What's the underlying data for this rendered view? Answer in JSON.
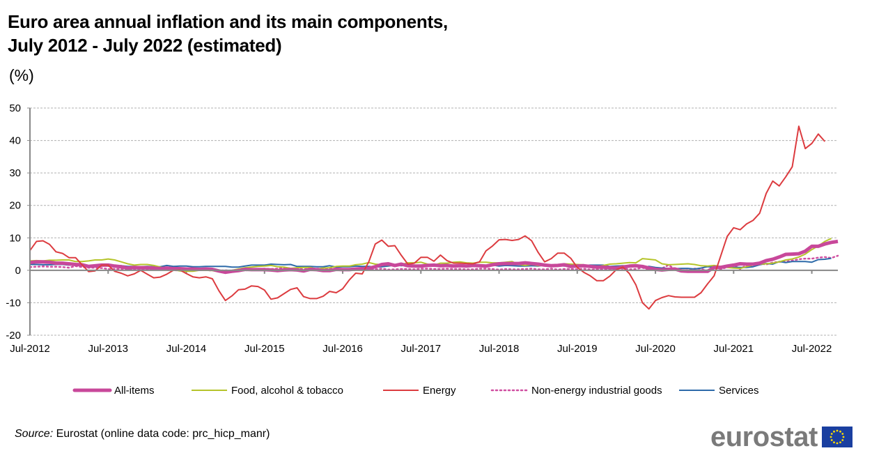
{
  "title_line1": "Euro area annual inflation and its main components,",
  "title_line2": "July 2012 - July 2022 (estimated)",
  "unit": "(%)",
  "source_label": "Source:",
  "source_text": " Eurostat (online data code: prc_hicp_manr)",
  "logo_text": "eurostat",
  "chart_data": {
    "type": "line",
    "title": "Euro area annual inflation and its main components, July 2012 - July 2022 (estimated)",
    "xlabel": "",
    "ylabel": "(%)",
    "ylim": [
      -20,
      50
    ],
    "yticks": [
      -20,
      -10,
      0,
      10,
      20,
      30,
      40,
      50
    ],
    "ytick_labels": [
      "-20",
      "-10",
      "0",
      "10",
      "20",
      "30",
      "40",
      "50"
    ],
    "xtick_labels": [
      "Jul-2012",
      "Jul-2013",
      "Jul-2014",
      "Jul-2015",
      "Jul-2016",
      "Jul-2017",
      "Jul-2018",
      "Jul-2019",
      "Jul-2020",
      "Jul-2021",
      "Jul-2022"
    ],
    "x_start": "Jul-2012",
    "x_end": "Jul-2022",
    "frequency": "monthly",
    "grid": "horizontal-dashed",
    "legend_position": "bottom",
    "series": [
      {
        "name": "All-items",
        "color": "#c8489a",
        "style": "thick",
        "values": [
          2.4,
          2.6,
          2.6,
          2.5,
          2.2,
          2.2,
          2.0,
          1.8,
          1.7,
          1.2,
          1.4,
          1.6,
          1.6,
          1.3,
          1.1,
          0.7,
          0.9,
          0.8,
          0.8,
          0.7,
          0.5,
          0.7,
          0.5,
          0.5,
          0.4,
          0.4,
          0.3,
          0.4,
          0.3,
          -0.2,
          -0.6,
          -0.3,
          -0.1,
          0.3,
          0.2,
          0.2,
          0.2,
          0.1,
          -0.1,
          0.1,
          0.2,
          0.1,
          -0.2,
          0.3,
          0.2,
          -0.1,
          -0.1,
          0.3,
          0.2,
          0.2,
          0.4,
          0.5,
          0.6,
          1.1,
          1.8,
          2.0,
          1.5,
          1.9,
          1.4,
          1.3,
          1.3,
          1.5,
          1.6,
          1.4,
          1.5,
          1.3,
          1.4,
          1.3,
          1.5,
          1.4,
          1.3,
          1.7,
          2.0,
          2.1,
          2.1,
          2.1,
          2.3,
          2.1,
          1.9,
          1.6,
          1.4,
          1.5,
          1.7,
          1.2,
          1.3,
          1.4,
          1.2,
          1.0,
          1.0,
          0.8,
          0.7,
          1.0,
          1.3,
          1.4,
          1.2,
          0.7,
          0.3,
          0.1,
          0.3,
          0.4,
          -0.2,
          -0.3,
          -0.3,
          -0.3,
          -0.3,
          0.9,
          0.9,
          1.3,
          1.6,
          2.0,
          1.9,
          1.9,
          2.2,
          3.0,
          3.4,
          4.1,
          4.9,
          5.0,
          5.1,
          5.9,
          7.4,
          7.4,
          8.1,
          8.6,
          8.9
        ]
      },
      {
        "name": "Food, alcohol & tobacco",
        "color": "#b5c42a",
        "style": "thin",
        "values": [
          2.9,
          3.0,
          2.9,
          3.1,
          3.1,
          3.2,
          3.2,
          2.7,
          2.7,
          2.9,
          3.2,
          3.2,
          3.5,
          3.2,
          2.6,
          2.0,
          1.6,
          1.8,
          1.8,
          1.5,
          1.0,
          0.7,
          0.2,
          -0.2,
          -0.3,
          -0.3,
          0.0,
          0.0,
          -0.1,
          -0.5,
          -0.1,
          0.0,
          0.4,
          0.8,
          1.0,
          1.2,
          1.3,
          1.5,
          1.1,
          1.0,
          0.6,
          0.8,
          0.9,
          0.9,
          0.4,
          0.7,
          0.8,
          1.2,
          1.3,
          1.3,
          1.7,
          1.9,
          2.4,
          1.9,
          1.7,
          1.6,
          1.6,
          1.8,
          2.3,
          2.3,
          2.5,
          1.9,
          1.6,
          2.2,
          2.2,
          2.5,
          2.6,
          2.3,
          2.2,
          2.5,
          2.5,
          2.3,
          2.3,
          2.5,
          2.7,
          1.8,
          1.5,
          1.8,
          1.4,
          1.5,
          1.6,
          1.6,
          2.0,
          1.9,
          1.8,
          1.7,
          1.2,
          1.1,
          1.5,
          1.9,
          2.0,
          2.2,
          2.4,
          2.3,
          3.6,
          3.4,
          3.2,
          2.0,
          1.7,
          1.8,
          1.9,
          2.0,
          1.8,
          1.4,
          1.3,
          1.5,
          1.2,
          0.9,
          0.7,
          0.6,
          1.1,
          1.6,
          1.9,
          2.0,
          2.2,
          2.6,
          3.2,
          3.5,
          4.1,
          5.0,
          6.4,
          7.5,
          8.9,
          9.8
        ]
      },
      {
        "name": "Energy",
        "color": "#dc3b3f",
        "style": "thin",
        "values": [
          6.1,
          8.9,
          9.1,
          8.0,
          5.7,
          5.2,
          3.9,
          3.9,
          1.7,
          -0.4,
          -0.2,
          1.6,
          1.6,
          -0.3,
          -0.9,
          -1.7,
          -1.1,
          0.0,
          -1.2,
          -2.3,
          -2.1,
          -1.2,
          0.0,
          0.1,
          -1.0,
          -2.0,
          -2.3,
          -2.0,
          -2.6,
          -6.3,
          -9.3,
          -7.9,
          -6.0,
          -5.8,
          -4.8,
          -5.0,
          -6.1,
          -8.9,
          -8.5,
          -7.2,
          -5.9,
          -5.4,
          -8.1,
          -8.7,
          -8.7,
          -8.0,
          -6.5,
          -6.9,
          -5.7,
          -3.0,
          -0.9,
          -1.1,
          2.6,
          8.1,
          9.3,
          7.4,
          7.6,
          4.6,
          1.9,
          2.2,
          4.0,
          4.0,
          2.8,
          4.7,
          3.0,
          2.2,
          2.2,
          2.1,
          2.0,
          2.6,
          6.0,
          7.5,
          9.4,
          9.5,
          9.2,
          9.5,
          10.6,
          9.1,
          5.5,
          2.6,
          3.6,
          5.3,
          5.3,
          3.7,
          0.9,
          -0.6,
          -1.7,
          -3.2,
          -3.2,
          -1.8,
          0.2,
          1.0,
          -1.0,
          -4.5,
          -10.0,
          -11.9,
          -9.3,
          -8.4,
          -7.8,
          -8.2,
          -8.3,
          -8.3,
          -8.3,
          -6.9,
          -4.2,
          -1.7,
          4.3,
          10.4,
          13.1,
          12.5,
          14.3,
          15.4,
          17.6,
          23.7,
          27.5,
          26.0,
          28.8,
          31.9,
          44.4,
          37.5,
          39.1,
          42.0,
          39.7
        ]
      },
      {
        "name": "Non-energy industrial goods",
        "color": "#d04ea0",
        "style": "dotted",
        "values": [
          1.0,
          1.1,
          1.2,
          1.1,
          1.1,
          1.0,
          0.8,
          1.3,
          1.0,
          0.8,
          0.8,
          0.7,
          0.4,
          0.4,
          0.4,
          0.3,
          0.2,
          0.2,
          0.2,
          0.4,
          0.2,
          0.1,
          0.0,
          0.0,
          0.0,
          0.2,
          0.2,
          0.1,
          -0.1,
          -0.1,
          0.0,
          -0.1,
          -0.1,
          -0.1,
          0.2,
          0.3,
          0.5,
          0.4,
          0.5,
          0.7,
          0.6,
          0.5,
          0.3,
          0.6,
          0.5,
          0.5,
          0.6,
          0.5,
          0.3,
          0.3,
          0.3,
          0.2,
          0.4,
          0.3,
          0.5,
          0.2,
          0.3,
          0.4,
          0.4,
          0.3,
          0.5,
          0.5,
          0.4,
          0.4,
          0.5,
          0.4,
          0.4,
          0.3,
          0.3,
          0.5,
          0.5,
          0.4,
          0.2,
          0.4,
          0.3,
          0.3,
          0.4,
          0.5,
          0.3,
          0.3,
          0.5,
          0.2,
          0.4,
          0.4,
          0.3,
          0.5,
          0.2,
          0.3,
          0.3,
          0.4,
          0.5,
          0.5,
          0.3,
          0.4,
          0.8,
          0.2,
          0.3,
          0.6,
          1.6,
          0.4,
          -0.1,
          0.1,
          0.5,
          0.5,
          -0.3,
          1.4,
          0.3,
          1.0,
          1.6,
          0.4,
          1.6,
          2.1,
          2.1,
          1.8,
          2.4,
          2.6,
          2.7,
          3.0,
          3.4,
          3.6,
          3.6,
          3.9,
          4.1,
          3.8,
          4.5
        ]
      },
      {
        "name": "Services",
        "color": "#2d6aa9",
        "style": "thin",
        "values": [
          1.8,
          1.8,
          1.7,
          1.7,
          1.8,
          1.8,
          1.6,
          1.7,
          1.8,
          1.4,
          1.1,
          1.4,
          1.4,
          1.4,
          1.4,
          1.2,
          1.2,
          1.1,
          1.2,
          1.1,
          1.1,
          1.5,
          1.2,
          1.3,
          1.3,
          1.1,
          1.1,
          1.2,
          1.2,
          1.2,
          1.2,
          1.0,
          1.0,
          1.3,
          1.6,
          1.6,
          1.6,
          1.9,
          1.8,
          1.7,
          1.8,
          1.2,
          1.2,
          1.2,
          1.1,
          1.1,
          1.4,
          1.0,
          1.1,
          1.1,
          1.3,
          1.2,
          1.2,
          1.0,
          1.1,
          1.3,
          1.6,
          1.4,
          1.6,
          1.3,
          1.4,
          1.5,
          1.5,
          1.6,
          1.6,
          1.4,
          1.3,
          1.3,
          1.5,
          1.2,
          1.5,
          1.6,
          1.3,
          1.5,
          1.4,
          1.3,
          1.3,
          1.4,
          1.3,
          1.6,
          1.1,
          1.5,
          1.3,
          1.5,
          1.2,
          1.5,
          1.6,
          1.6,
          1.6,
          1.2,
          1.3,
          1.4,
          1.3,
          1.3,
          0.9,
          1.2,
          0.9,
          0.7,
          0.6,
          0.5,
          0.6,
          0.6,
          0.4,
          0.7,
          1.1,
          1.0,
          0.8,
          1.3,
          0.9,
          0.9,
          0.9,
          1.1,
          1.7,
          2.1,
          1.9,
          2.7,
          2.4,
          2.7,
          2.7,
          2.7,
          2.5,
          3.3,
          3.4,
          3.7
        ]
      }
    ]
  }
}
